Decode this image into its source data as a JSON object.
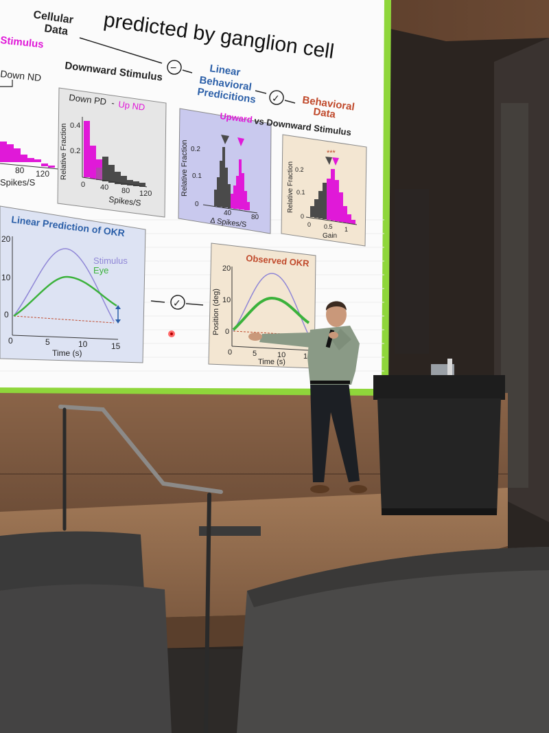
{
  "slide": {
    "title": "predicted by ganglion cell",
    "cellular_data": [
      "Cellular",
      "Data"
    ],
    "linear_behavioral": [
      "Linear",
      "Behavioral",
      "Predicitions"
    ],
    "behavioral_data": [
      "Behavioral",
      "Data"
    ],
    "minus_symbol": "−",
    "check_symbol": "✓",
    "colors": {
      "magenta": "#e019d8",
      "dark_bar": "#4a4a4a",
      "blue_title": "#2b5fa8",
      "orange_title": "#c0492b",
      "green_curve": "#3bb23b",
      "purple_curve": "#8f86d6",
      "slide_border": "#8fd63b"
    },
    "panel_a": {
      "heading": "Stimulus",
      "sublabel": "Down ND",
      "x_ticks": [
        "80",
        "120"
      ],
      "x_label": "Spikes/S"
    },
    "panel_b": {
      "heading": "Downward Stimulus",
      "label_down_pd": "Down PD",
      "label_dash": "-",
      "label_up_nd": "Up ND",
      "y_label": "Relative Fraction",
      "y_ticks": [
        "0.4",
        "0.2"
      ],
      "x_ticks": [
        "0",
        "40",
        "80",
        "120"
      ],
      "x_label": "Spikes/S"
    },
    "panel_c": {
      "heading_upward": "Upward",
      "heading_rest": "vs Downward Stimulus",
      "y_label": "Relative Fraction",
      "y_ticks": [
        "0.2",
        "0.1",
        "0"
      ],
      "x_ticks": [
        "40",
        "80"
      ],
      "x_label": "Δ Spikes/S"
    },
    "panel_d": {
      "significance": "***",
      "y_label": "Relative Fraction",
      "y_ticks": [
        "0.2",
        "0.1",
        "0"
      ],
      "x_ticks": [
        "0",
        "0.5",
        "1"
      ],
      "x_label": "Gain"
    },
    "panel_e": {
      "title": "Linear Prediction of OKR",
      "legend_stimulus": "Stimulus",
      "legend_eye": "Eye",
      "y_ticks": [
        "20",
        "10",
        "0"
      ],
      "x_ticks": [
        "0",
        "5",
        "10",
        "15"
      ],
      "x_label": "Time (s)"
    },
    "panel_f": {
      "title": "Observed OKR",
      "y_label": "Position (deg)",
      "y_ticks": [
        "20",
        "10",
        "0"
      ],
      "x_ticks": [
        "0",
        "5",
        "10",
        "15"
      ],
      "x_label": "Time (s)"
    }
  }
}
